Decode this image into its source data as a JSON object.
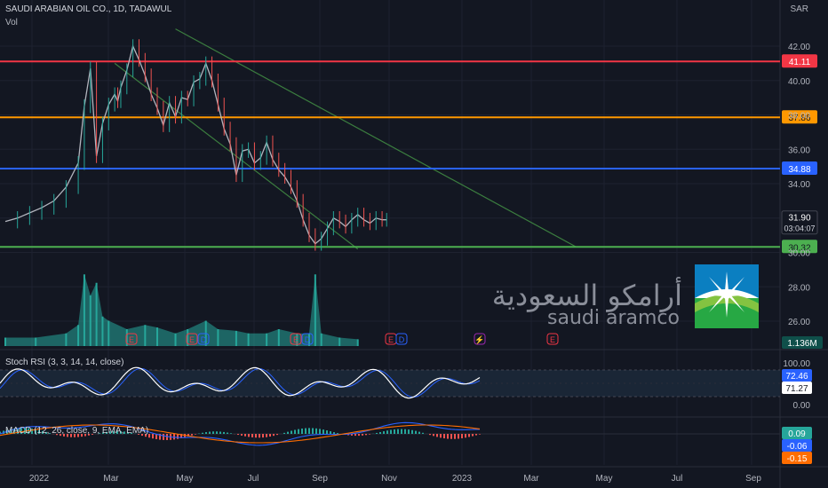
{
  "header": {
    "title": "SAUDI ARABIAN OIL CO., 1D, TADAWUL",
    "vol_label": "Vol",
    "currency": "SAR"
  },
  "logo": {
    "arabic": "أرامكو السعودية",
    "english": "saudi aramco"
  },
  "chart_data": {
    "type": "line",
    "title": "SAUDI ARABIAN OIL CO., 1D, TADAWUL",
    "currency": "SAR",
    "x_ticks": [
      "2022",
      "Mar",
      "May",
      "Jul",
      "Sep",
      "Nov",
      "2023",
      "Mar",
      "May",
      "Jul",
      "Sep"
    ],
    "y_ticks": [
      26.0,
      28.0,
      30.0,
      32.0,
      34.0,
      36.0,
      38.0,
      40.0,
      42.0
    ],
    "ylim": [
      25.4,
      43.0
    ],
    "price": {
      "x": [
        0,
        4,
        8,
        12,
        16,
        20,
        24,
        26,
        28,
        30,
        32,
        34,
        36,
        37,
        38,
        40,
        42,
        44,
        46,
        48,
        50,
        52,
        54,
        56,
        58,
        60,
        62,
        64,
        66,
        68,
        70,
        72,
        74,
        76,
        78,
        80,
        82,
        84,
        86,
        88,
        90,
        92,
        94,
        96,
        98,
        100,
        102,
        104,
        106,
        108,
        110,
        112,
        114,
        116,
        118,
        120,
        122,
        124,
        125.5
      ],
      "close": [
        31.8,
        32.0,
        32.3,
        32.6,
        33.0,
        33.8,
        35.2,
        38.5,
        40.7,
        35.6,
        37.5,
        38.6,
        39.2,
        38.8,
        39.6,
        40.6,
        42.0,
        41.2,
        40.3,
        39.2,
        38.4,
        37.4,
        38.7,
        37.9,
        39.0,
        38.9,
        39.9,
        40.1,
        41.0,
        40.0,
        38.6,
        37.2,
        36.3,
        34.5,
        35.9,
        36.0,
        35.2,
        35.5,
        36.4,
        35.4,
        34.8,
        34.4,
        33.8,
        33.0,
        31.9,
        31.0,
        30.5,
        30.8,
        31.4,
        32.0,
        31.8,
        31.5,
        31.9,
        32.2,
        31.9,
        31.7,
        32.0,
        31.9,
        31.9
      ]
    },
    "levels": [
      {
        "value": 41.11,
        "label": "41.11",
        "color": "#f23645"
      },
      {
        "value": 37.86,
        "label": "37.86",
        "color": "#ff9800"
      },
      {
        "value": 34.88,
        "label": "34.88",
        "color": "#2962ff"
      },
      {
        "value": 30.32,
        "label": "30.32",
        "color": "#4caf50"
      }
    ],
    "last_price": {
      "value": 31.9,
      "label": "31.90",
      "countdown": "03:04:07"
    },
    "channel": {
      "upper": [
        [
          56,
          43.0
        ],
        [
          82,
          35.0
        ]
      ],
      "lower": [
        [
          36,
          41.0
        ],
        [
          116,
          30.2
        ]
      ],
      "color": "#3b7d3f"
    },
    "volume": {
      "label": "1.136M",
      "x": [
        0,
        10,
        20,
        24,
        26,
        28,
        30,
        32,
        34,
        40,
        46,
        50,
        56,
        60,
        66,
        70,
        76,
        80,
        86,
        90,
        96,
        100,
        102,
        104,
        110,
        116
      ],
      "values": [
        0.1,
        0.1,
        0.15,
        0.25,
        0.85,
        0.6,
        0.75,
        0.35,
        0.3,
        0.2,
        0.25,
        0.22,
        0.15,
        0.2,
        0.3,
        0.2,
        0.18,
        0.15,
        0.15,
        0.2,
        0.15,
        0.15,
        0.85,
        0.15,
        0.1,
        0.08
      ],
      "color": "#26a69a",
      "event_markers": [
        "E",
        "E",
        "D",
        "E",
        "D",
        "E",
        "E",
        "D",
        "E",
        "D",
        "⚡",
        "E"
      ]
    },
    "stoch_rsi": {
      "label": "Stoch RSI (3, 3, 14, 14, close)",
      "y_ticks": [
        "100.00",
        "0.00"
      ],
      "k": "72.46",
      "d": "71.27",
      "k_color": "#2962ff",
      "d_color": "#ffffff"
    },
    "macd": {
      "label": "MACD (12, 26, close, 9, EMA, EMA)",
      "histogram": "0.09",
      "macd": "-0.06",
      "signal": "-0.15",
      "y_tick": "0.00",
      "histogram_color": "#26a69a",
      "macd_color": "#2962ff",
      "signal_color": "#ff6d00"
    }
  }
}
